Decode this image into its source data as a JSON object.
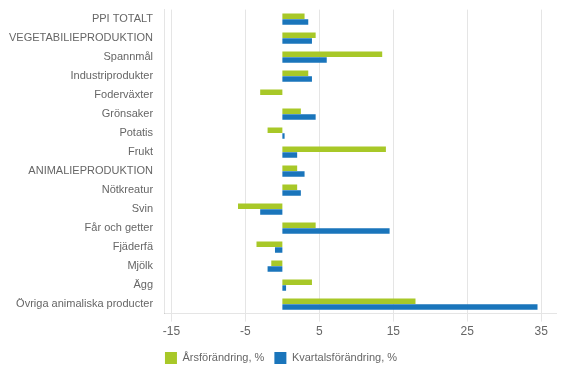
{
  "chart_data": {
    "type": "bar",
    "orientation": "horizontal",
    "categories": [
      "PPI TOTALT",
      "VEGETABILIEPRODUKTION",
      "Spannmål",
      "Industriprodukter",
      "Foderväxter",
      "Grönsaker",
      "Potatis",
      "Frukt",
      "ANIMALIEPRODUKTION",
      "Nötkreatur",
      "Svin",
      "Får och getter",
      "Fjäderfä",
      "Mjölk",
      "Ägg",
      "Övriga animaliska producter"
    ],
    "series": [
      {
        "name": "Årsförändring, %",
        "color": "#a8c828",
        "values": [
          3.0,
          4.5,
          13.5,
          3.5,
          -3.0,
          2.5,
          -2.0,
          14.0,
          2.0,
          2.0,
          -6.0,
          4.5,
          -3.5,
          -1.5,
          4.0,
          18.0
        ]
      },
      {
        "name": "Kvartalsförändring, %",
        "color": "#1a75bb",
        "values": [
          3.5,
          4.0,
          6.0,
          4.0,
          0.0,
          4.5,
          0.3,
          2.0,
          3.0,
          2.5,
          -3.0,
          14.5,
          -1.0,
          -2.0,
          0.5,
          34.5
        ]
      }
    ],
    "xlim": [
      -16,
      37
    ],
    "xticks": [
      -15,
      -5,
      5,
      15,
      25,
      35
    ],
    "grid": true,
    "legend": "bottom"
  }
}
